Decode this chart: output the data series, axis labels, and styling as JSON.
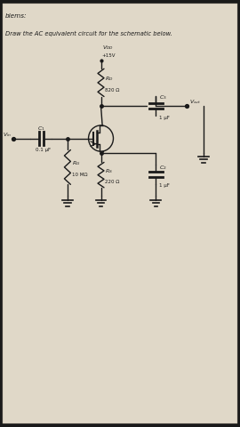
{
  "bg_color": "#1a1a1a",
  "paper_color": "#d8d0c0",
  "paper_color2": "#e0d8c8",
  "text_color": "#1a1a1a",
  "title_text": "Draw the AC equivalent circuit for the schematic below.",
  "header_text": "blems:",
  "vdd_label": "V_{DD}",
  "vdd_v": "+15V",
  "rd_label": "R_D",
  "rd_val": "820 Ω",
  "c1_label": "C_1",
  "c1_val": "0.1 μF",
  "rg_label": "R_G",
  "rg_val": "10 MΩ",
  "rs_label": "R_S",
  "rs_val": "220 Ω",
  "c2_label": "C_2",
  "c2_val": "1 μF",
  "c3_label": "C_3",
  "c3_val": "1 μF",
  "vout_label": "V_{out}",
  "vin_label": "V_{in}",
  "xlim": [
    0,
    10
  ],
  "ylim": [
    0,
    17
  ]
}
